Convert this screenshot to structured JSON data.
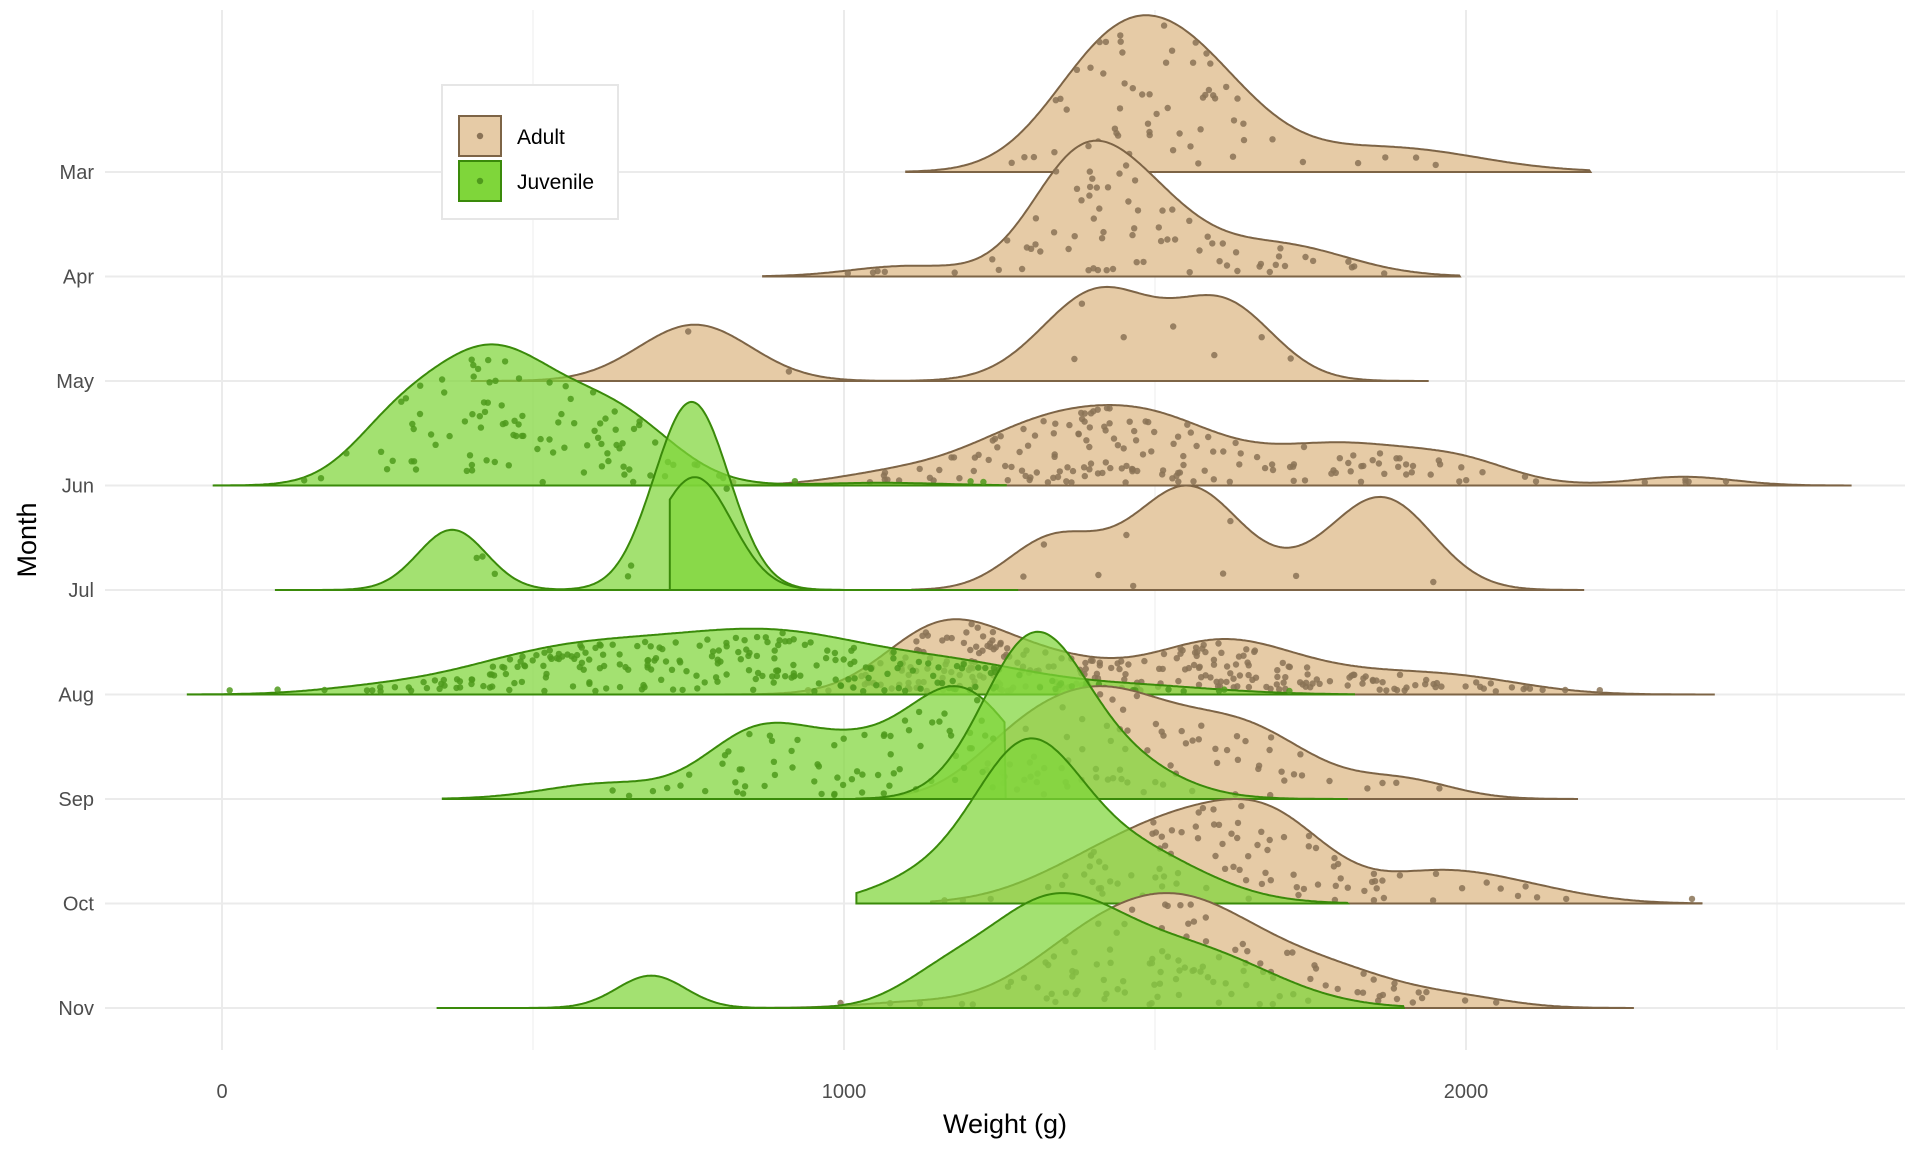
{
  "chart_data": {
    "type": "ridgeline",
    "title": "",
    "xlabel": "Weight (g)",
    "ylabel": "Month",
    "xlim": [
      -55,
      2710
    ],
    "x_ticks": [
      0,
      1000,
      2000
    ],
    "x_tick_labels": [
      "0",
      "1000",
      "2000"
    ],
    "months": [
      "Mar",
      "Apr",
      "May",
      "Jun",
      "Jul",
      "Aug",
      "Sep",
      "Oct",
      "Nov"
    ],
    "grid": true,
    "legend": {
      "placement": "top-left",
      "entries": [
        "Adult",
        "Juvenile"
      ]
    },
    "series": [
      {
        "name": "Adult",
        "color": "#e6cba6",
        "stroke": "#7d6446",
        "point_color": "#8a7356",
        "ridges": {
          "Mar": {
            "range": [
              1100,
              2200
            ],
            "peak_height": 1.5,
            "components": [
              [
                1520,
                120,
                1.0
              ],
              [
                1400,
                90,
                0.35
              ],
              [
                1880,
                140,
                0.18
              ]
            ]
          },
          "Apr": {
            "range": [
              870,
              1990
            ],
            "peak_height": 1.3,
            "components": [
              [
                1440,
                100,
                1.0
              ],
              [
                1360,
                70,
                0.45
              ],
              [
                1700,
                110,
                0.3
              ],
              [
                1100,
                90,
                0.1
              ]
            ]
          },
          "May": {
            "range": [
              400,
              1940
            ],
            "peak_height": 0.9,
            "components": [
              [
                760,
                90,
                1.0
              ],
              [
                1410,
                90,
                1.6
              ],
              [
                1610,
                80,
                1.35
              ]
            ]
          },
          "Jun": {
            "range": [
              710,
              2620
            ],
            "peak_height": 0.77,
            "components": [
              [
                1350,
                140,
                1.0
              ],
              [
                1520,
                100,
                0.5
              ],
              [
                1800,
                140,
                0.62
              ],
              [
                2000,
                80,
                0.22
              ],
              [
                2350,
                80,
                0.13
              ],
              [
                1060,
                90,
                0.12
              ]
            ]
          },
          "Jul": {
            "range": [
              1110,
              2190
            ],
            "peak_height": 1.0,
            "components": [
              [
                1330,
                70,
                0.5
              ],
              [
                1560,
                80,
                1.0
              ],
              [
                1870,
                80,
                0.97
              ],
              [
                1760,
                100,
                0.2
              ],
              [
                1460,
                100,
                0.3
              ]
            ]
          },
          "Aug": {
            "range": [
              720,
              2400
            ],
            "peak_height": 0.72,
            "components": [
              [
                1150,
                90,
                1.0
              ],
              [
                1300,
                120,
                0.7
              ],
              [
                1600,
                110,
                0.85
              ],
              [
                1800,
                140,
                0.35
              ],
              [
                2000,
                110,
                0.22
              ]
            ]
          },
          "Sep": {
            "range": [
              1020,
              2180
            ],
            "peak_height": 1.08,
            "components": [
              [
                1410,
                110,
                1.0
              ],
              [
                1640,
                110,
                0.7
              ],
              [
                1900,
                80,
                0.18
              ],
              [
                1270,
                80,
                0.3
              ]
            ]
          },
          "Oct": {
            "range": [
              1140,
              2380
            ],
            "peak_height": 1.0,
            "components": [
              [
                1560,
                110,
                0.85
              ],
              [
                1700,
                90,
                0.75
              ],
              [
                1950,
                100,
                0.35
              ],
              [
                2100,
                100,
                0.15
              ],
              [
                1400,
                110,
                0.4
              ]
            ]
          },
          "Nov": {
            "range": [
              830,
              2270
            ],
            "peak_height": 1.1,
            "components": [
              [
                1550,
                130,
                1.0
              ],
              [
                1380,
                110,
                0.4
              ],
              [
                1800,
                110,
                0.3
              ],
              [
                2000,
                80,
                0.08
              ],
              [
                1100,
                80,
                0.05
              ]
            ]
          }
        },
        "point_counts": {
          "Mar": 62,
          "Apr": 74,
          "May": 9,
          "Jun": 160,
          "Jul": 9,
          "Aug": 260,
          "Sep": 78,
          "Oct": 98,
          "Nov": 110
        }
      },
      {
        "name": "Juvenile",
        "color": "#7fd63a",
        "stroke": "#3a8a0a",
        "point_color": "#4f9a1c",
        "ridges": {
          "Jun": {
            "range": [
              -15,
              1260
            ],
            "peak_height": 1.35,
            "components": [
              [
                430,
                110,
                1.0
              ],
              [
                640,
                90,
                0.45
              ],
              [
                270,
                70,
                0.25
              ],
              [
                1060,
                100,
                0.02
              ]
            ]
          },
          "Jul": {
            "range": [
              85,
              1110
            ],
            "peak_height": 1.8,
            "components": [
              [
                370,
                55,
                0.32
              ],
              [
                755,
                60,
                1.0
              ]
            ]
          },
          "Aug": {
            "range": [
              -55,
              1820
            ],
            "peak_height": 0.63,
            "components": [
              [
                560,
                170,
                0.75
              ],
              [
                900,
                170,
                1.0
              ],
              [
                1200,
                120,
                0.35
              ],
              [
                1450,
                140,
                0.16
              ],
              [
                230,
                90,
                0.06
              ]
            ]
          },
          "Sep": {
            "range": [
              355,
              1260
            ],
            "peak_height": 1.08,
            "components": [
              [
                850,
                80,
                0.52
              ],
              [
                1190,
                85,
                1.0
              ],
              [
                1000,
                100,
                0.5
              ],
              [
                620,
                100,
                0.15
              ]
            ]
          },
          "Oct": {
            "range": [
              1020,
              1810
            ],
            "peak_height": 1.58,
            "components": [
              [
                1290,
                85,
                1.0
              ],
              [
                1450,
                120,
                0.4
              ],
              [
                1120,
                80,
                0.15
              ]
            ]
          },
          "Nov": {
            "range": [
              345,
              1900
            ],
            "peak_height": 1.1,
            "components": [
              [
                1330,
                110,
                1.0
              ],
              [
                1560,
                130,
                0.55
              ],
              [
                690,
                55,
                0.32
              ],
              [
                1150,
                70,
                0.2
              ]
            ]
          }
        },
        "point_counts": {
          "Jun": 100,
          "Jul": 6,
          "Aug": 240,
          "Sep": 72,
          "Oct": 0,
          "Nov": 0
        }
      }
    ],
    "overlap_ridges": {
      "Jul": {
        "series": "Juvenile",
        "range": [
          720,
          1280
        ],
        "peak_height": 1.08,
        "components": [
          [
            760,
            60,
            1.0
          ]
        ]
      },
      "Sep": {
        "series": "Juvenile",
        "range": [
          1020,
          1810
        ],
        "peak_height": 1.6,
        "components": [
          [
            1300,
            80,
            1.0
          ],
          [
            1420,
            100,
            0.3
          ]
        ]
      }
    }
  }
}
